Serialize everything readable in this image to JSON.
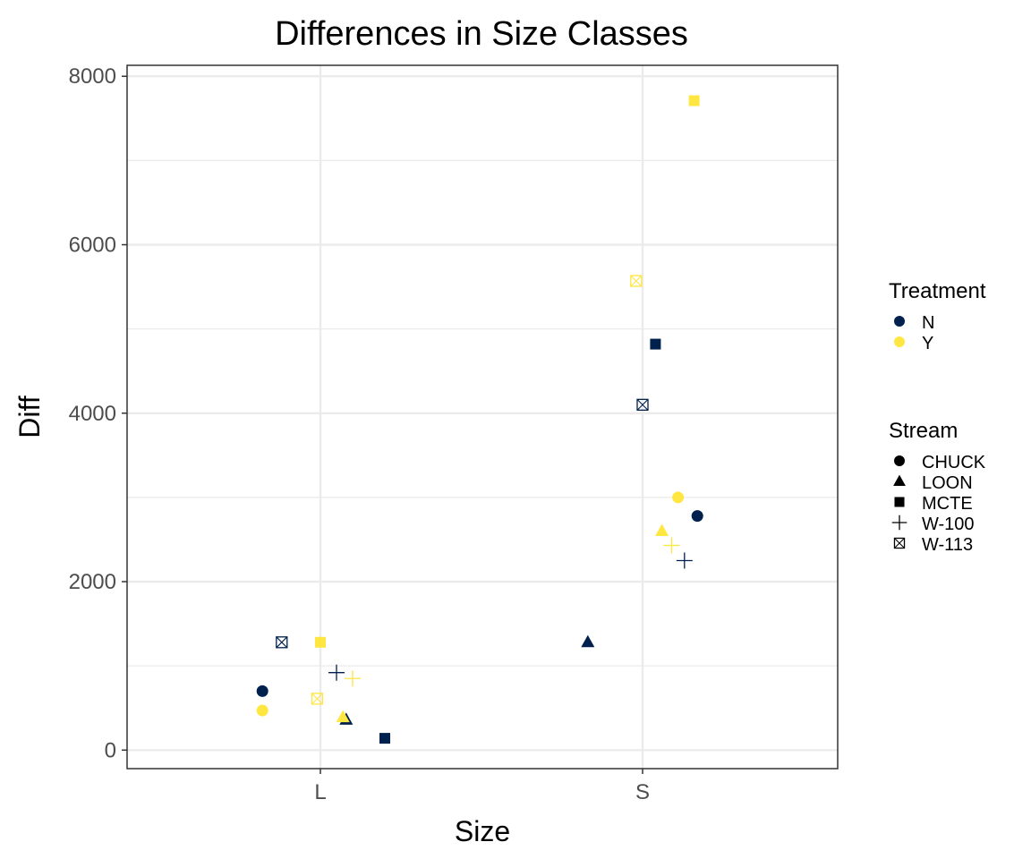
{
  "chart_data": {
    "type": "scatter",
    "title": "Differences in Size Classes",
    "xlabel": "Size",
    "ylabel": "Diff",
    "categories": [
      "L",
      "S"
    ],
    "y_ticks": [
      0,
      2000,
      4000,
      6000,
      8000
    ],
    "ylim": [
      -220,
      8130
    ],
    "grid": true,
    "colors": {
      "N": "#00204d",
      "Y": "#ffe640"
    },
    "legend_placement": "right",
    "legends": [
      {
        "title": "Treatment",
        "entries": [
          {
            "label": "N",
            "shape": "circle",
            "color": "#00204d"
          },
          {
            "label": "Y",
            "shape": "circle",
            "color": "#ffe640"
          }
        ]
      },
      {
        "title": "Stream",
        "entries": [
          {
            "label": "CHUCK",
            "shape": "circle",
            "color": "#000000"
          },
          {
            "label": "LOON",
            "shape": "triangle",
            "color": "#000000"
          },
          {
            "label": "MCTE",
            "shape": "square",
            "color": "#000000"
          },
          {
            "label": "W-100",
            "shape": "plus",
            "color": "#000000"
          },
          {
            "label": "W-113",
            "shape": "boxx",
            "color": "#000000"
          }
        ]
      }
    ],
    "points": [
      {
        "size": "L",
        "jitter": -0.18,
        "diff": 700,
        "treatment": "N",
        "stream": "CHUCK"
      },
      {
        "size": "L",
        "jitter": -0.18,
        "diff": 470,
        "treatment": "Y",
        "stream": "CHUCK"
      },
      {
        "size": "L",
        "jitter": -0.12,
        "diff": 1280,
        "treatment": "N",
        "stream": "W-113"
      },
      {
        "size": "L",
        "jitter": 0.0,
        "diff": 1280,
        "treatment": "Y",
        "stream": "MCTE"
      },
      {
        "size": "L",
        "jitter": 0.05,
        "diff": 920,
        "treatment": "N",
        "stream": "W-100"
      },
      {
        "size": "L",
        "jitter": 0.1,
        "diff": 850,
        "treatment": "Y",
        "stream": "W-100"
      },
      {
        "size": "L",
        "jitter": -0.01,
        "diff": 610,
        "treatment": "Y",
        "stream": "W-113"
      },
      {
        "size": "L",
        "jitter": 0.08,
        "diff": 360,
        "treatment": "N",
        "stream": "LOON"
      },
      {
        "size": "L",
        "jitter": 0.07,
        "diff": 390,
        "treatment": "Y",
        "stream": "LOON"
      },
      {
        "size": "L",
        "jitter": 0.2,
        "diff": 140,
        "treatment": "N",
        "stream": "MCTE"
      },
      {
        "size": "S",
        "jitter": 0.16,
        "diff": 7710,
        "treatment": "Y",
        "stream": "MCTE"
      },
      {
        "size": "S",
        "jitter": -0.02,
        "diff": 5570,
        "treatment": "Y",
        "stream": "W-113"
      },
      {
        "size": "S",
        "jitter": 0.04,
        "diff": 4820,
        "treatment": "N",
        "stream": "MCTE"
      },
      {
        "size": "S",
        "jitter": 0.0,
        "diff": 4100,
        "treatment": "N",
        "stream": "W-113"
      },
      {
        "size": "S",
        "jitter": 0.11,
        "diff": 3000,
        "treatment": "Y",
        "stream": "CHUCK"
      },
      {
        "size": "S",
        "jitter": 0.17,
        "diff": 2780,
        "treatment": "N",
        "stream": "CHUCK"
      },
      {
        "size": "S",
        "jitter": 0.06,
        "diff": 2600,
        "treatment": "Y",
        "stream": "LOON"
      },
      {
        "size": "S",
        "jitter": 0.09,
        "diff": 2430,
        "treatment": "Y",
        "stream": "W-100"
      },
      {
        "size": "S",
        "jitter": 0.13,
        "diff": 2250,
        "treatment": "N",
        "stream": "W-100"
      },
      {
        "size": "S",
        "jitter": -0.17,
        "diff": 1280,
        "treatment": "N",
        "stream": "LOON"
      }
    ]
  }
}
